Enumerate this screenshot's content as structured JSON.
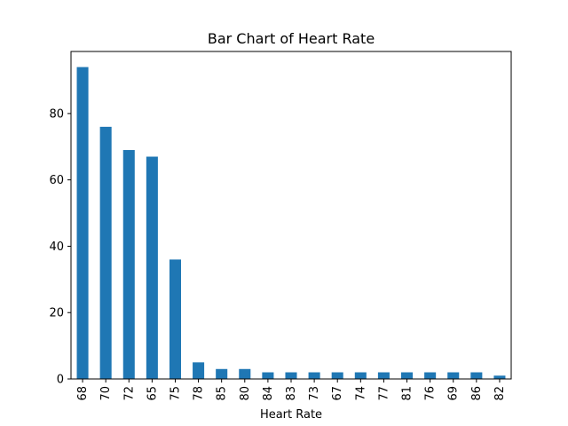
{
  "chart_data": {
    "type": "bar",
    "title": "Bar Chart of Heart Rate",
    "xlabel": "Heart Rate",
    "ylabel": "",
    "categories": [
      "68",
      "70",
      "72",
      "65",
      "75",
      "78",
      "85",
      "80",
      "84",
      "83",
      "73",
      "67",
      "74",
      "77",
      "81",
      "76",
      "69",
      "86",
      "82"
    ],
    "values": [
      94,
      76,
      69,
      67,
      36,
      5,
      3,
      3,
      2,
      2,
      2,
      2,
      2,
      2,
      2,
      2,
      2,
      2,
      1
    ],
    "ylim": [
      0,
      98.7
    ],
    "yticks": [
      0,
      20,
      40,
      60,
      80
    ],
    "bar_color": "#1f77b4",
    "grid": false,
    "legend": "none"
  }
}
